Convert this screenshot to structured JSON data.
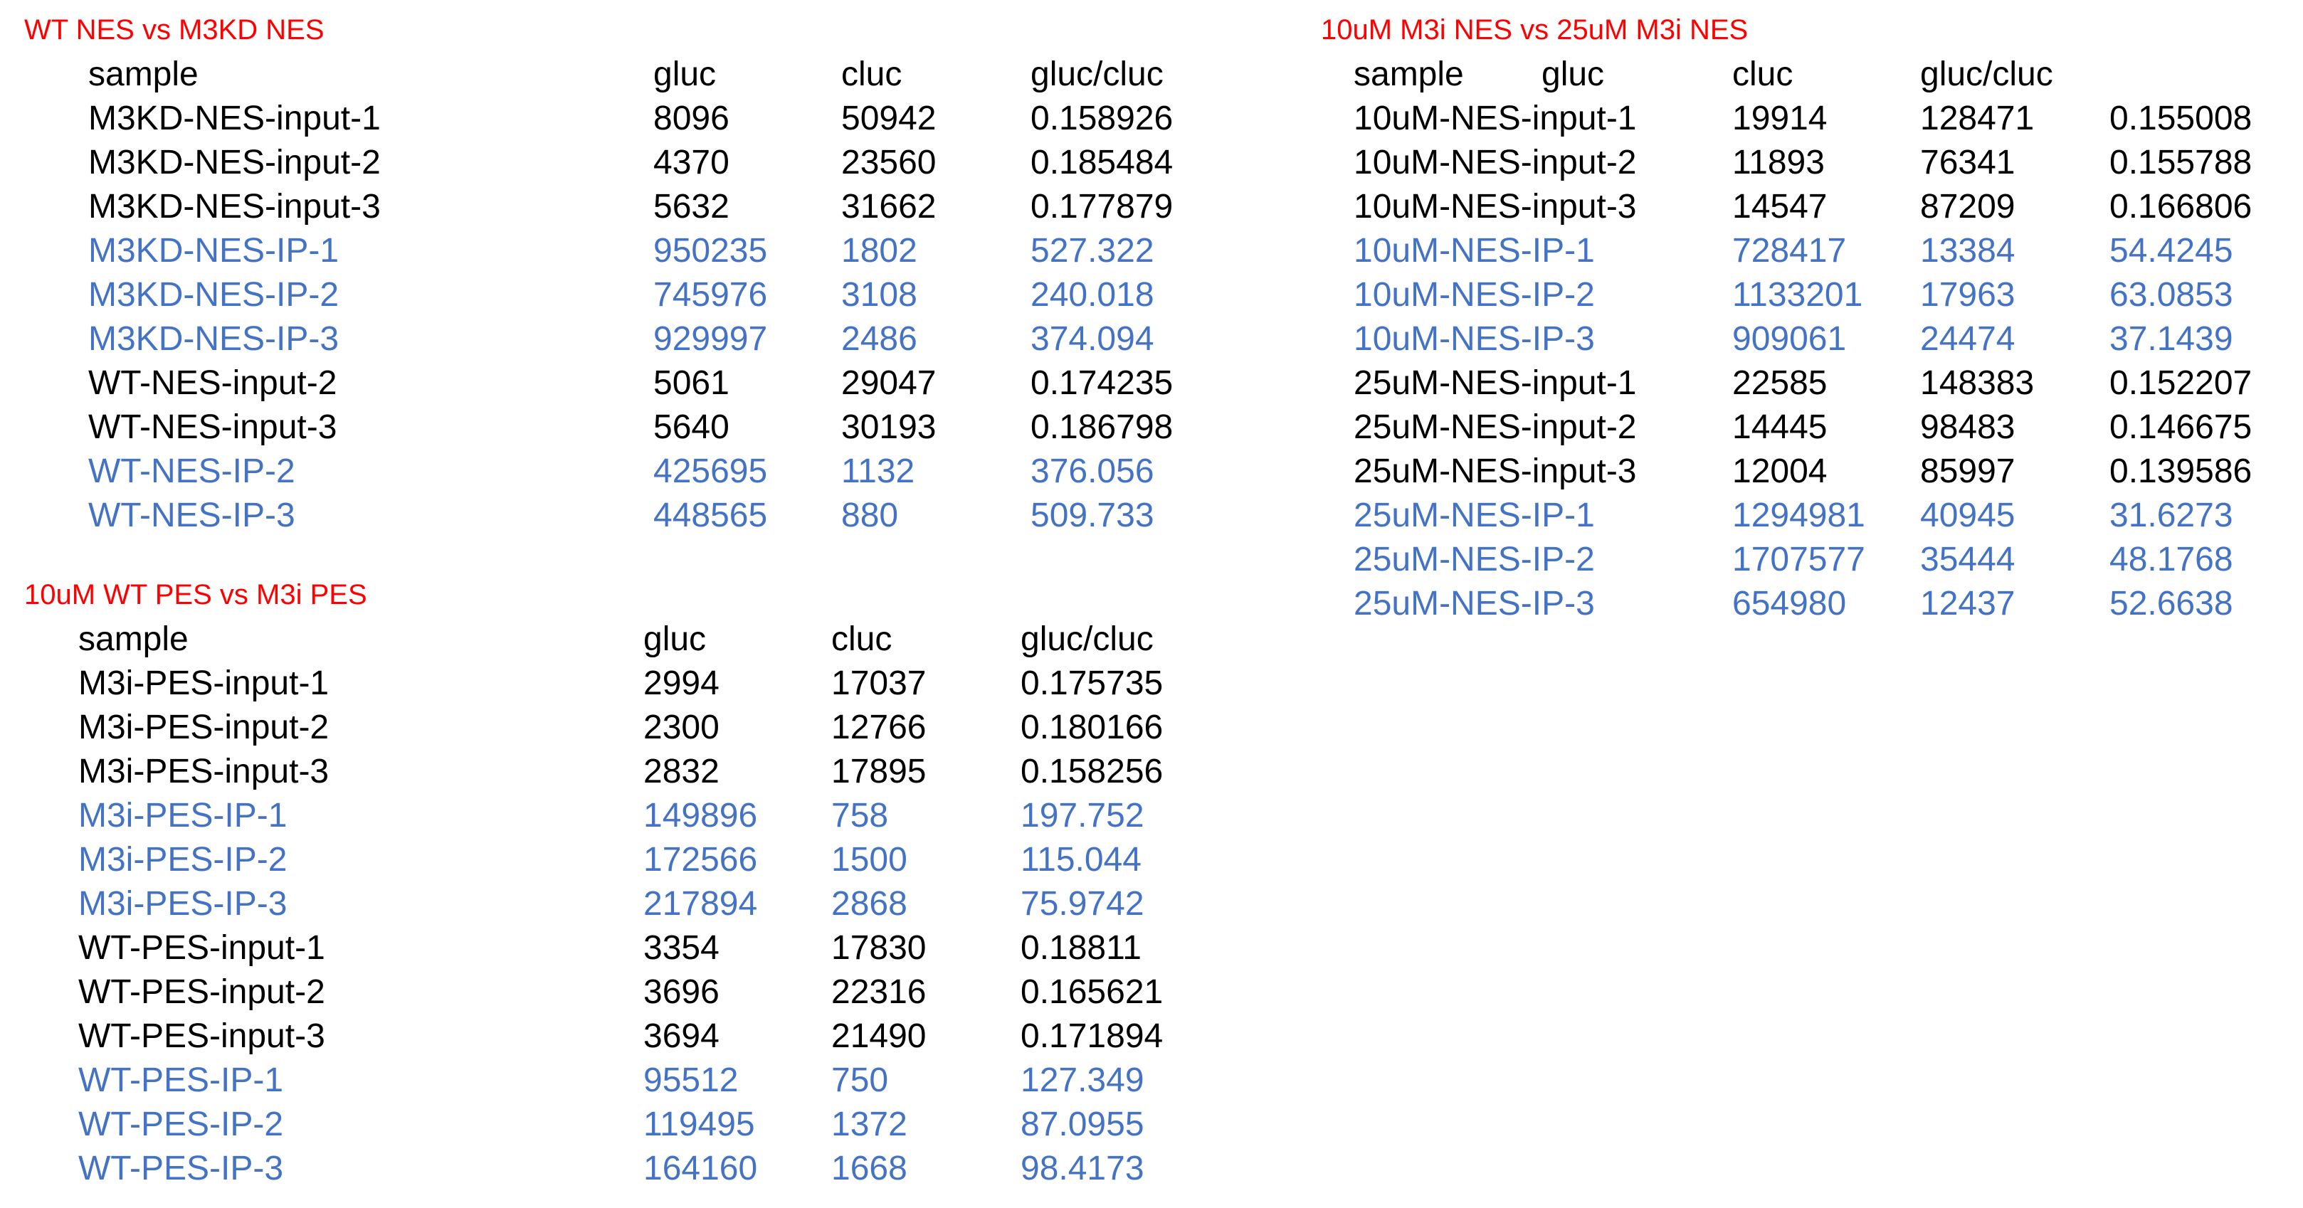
{
  "colors": {
    "title": "#ff0000",
    "input_row": "#000000",
    "ip_row": "#4472c4"
  },
  "tables": {
    "wt_vs_m3kd_nes": {
      "title": "WT NES vs M3KD NES",
      "header": [
        "sample",
        "gluc",
        "cluc",
        "gluc/cluc"
      ],
      "rows": [
        {
          "type": "input",
          "cells": [
            "M3KD-NES-input-1",
            "8096",
            "50942",
            "0.158926"
          ]
        },
        {
          "type": "input",
          "cells": [
            "M3KD-NES-input-2",
            "4370",
            "23560",
            "0.185484"
          ]
        },
        {
          "type": "input",
          "cells": [
            "M3KD-NES-input-3",
            "5632",
            "31662",
            "0.177879"
          ]
        },
        {
          "type": "ip",
          "cells": [
            "M3KD-NES-IP-1",
            "950235",
            "1802",
            "527.322"
          ]
        },
        {
          "type": "ip",
          "cells": [
            "M3KD-NES-IP-2",
            "745976",
            "3108",
            "240.018"
          ]
        },
        {
          "type": "ip",
          "cells": [
            "M3KD-NES-IP-3",
            "929997",
            "2486",
            "374.094"
          ]
        },
        {
          "type": "input",
          "cells": [
            "WT-NES-input-2",
            "5061",
            "29047",
            "0.174235"
          ]
        },
        {
          "type": "input",
          "cells": [
            "WT-NES-input-3",
            "5640",
            "30193",
            "0.186798"
          ]
        },
        {
          "type": "ip",
          "cells": [
            "WT-NES-IP-2",
            "425695",
            "1132",
            "376.056"
          ]
        },
        {
          "type": "ip",
          "cells": [
            "WT-NES-IP-3",
            "448565",
            "880",
            "509.733"
          ]
        }
      ]
    },
    "wt_pes_vs_m3i_pes": {
      "title": "10uM WT PES vs M3i PES",
      "header": [
        "sample",
        "gluc",
        "cluc",
        "gluc/cluc"
      ],
      "rows": [
        {
          "type": "input",
          "cells": [
            "M3i-PES-input-1",
            "2994",
            "17037",
            "0.175735"
          ]
        },
        {
          "type": "input",
          "cells": [
            "M3i-PES-input-2",
            "2300",
            "12766",
            "0.180166"
          ]
        },
        {
          "type": "input",
          "cells": [
            "M3i-PES-input-3",
            "2832",
            "17895",
            "0.158256"
          ]
        },
        {
          "type": "ip",
          "cells": [
            "M3i-PES-IP-1",
            "149896",
            "758",
            "197.752"
          ]
        },
        {
          "type": "ip",
          "cells": [
            "M3i-PES-IP-2",
            "172566",
            "1500",
            "115.044"
          ]
        },
        {
          "type": "ip",
          "cells": [
            "M3i-PES-IP-3",
            "217894",
            "2868",
            "75.9742"
          ]
        },
        {
          "type": "input",
          "cells": [
            "WT-PES-input-1",
            "3354",
            "17830",
            "0.18811"
          ]
        },
        {
          "type": "input",
          "cells": [
            "WT-PES-input-2",
            "3696",
            "22316",
            "0.165621"
          ]
        },
        {
          "type": "input",
          "cells": [
            "WT-PES-input-3",
            "3694",
            "21490",
            "0.171894"
          ]
        },
        {
          "type": "ip",
          "cells": [
            "WT-PES-IP-1",
            "95512",
            "750",
            "127.349"
          ]
        },
        {
          "type": "ip",
          "cells": [
            "WT-PES-IP-2",
            "119495",
            "1372",
            "87.0955"
          ]
        },
        {
          "type": "ip",
          "cells": [
            "WT-PES-IP-3",
            "164160",
            "1668",
            "98.4173"
          ]
        }
      ]
    },
    "m3i_10um_vs_25um_nes": {
      "title": "10uM M3i NES vs 25uM M3i NES",
      "header": [
        "sample",
        "gluc",
        "cluc",
        "gluc/cluc"
      ],
      "rows": [
        {
          "type": "input",
          "cells": [
            "10uM-NES-input-1",
            "19914",
            "128471",
            "0.155008"
          ]
        },
        {
          "type": "input",
          "cells": [
            "10uM-NES-input-2",
            "11893",
            "76341",
            "0.155788"
          ]
        },
        {
          "type": "input",
          "cells": [
            "10uM-NES-input-3",
            "14547",
            "87209",
            "0.166806"
          ]
        },
        {
          "type": "ip",
          "cells": [
            "10uM-NES-IP-1",
            "728417",
            "13384",
            "54.4245"
          ]
        },
        {
          "type": "ip",
          "cells": [
            "10uM-NES-IP-2",
            "1133201",
            "17963",
            "63.0853"
          ]
        },
        {
          "type": "ip",
          "cells": [
            "10uM-NES-IP-3",
            "909061",
            "24474",
            "37.1439"
          ]
        },
        {
          "type": "input",
          "cells": [
            "25uM-NES-input-1",
            "22585",
            "148383",
            "0.152207"
          ]
        },
        {
          "type": "input",
          "cells": [
            "25uM-NES-input-2",
            "14445",
            "98483",
            "0.146675"
          ]
        },
        {
          "type": "input",
          "cells": [
            "25uM-NES-input-3",
            "12004",
            "85997",
            "0.139586"
          ]
        },
        {
          "type": "ip",
          "cells": [
            "25uM-NES-IP-1",
            "1294981",
            "40945",
            "31.6273"
          ]
        },
        {
          "type": "ip",
          "cells": [
            "25uM-NES-IP-2",
            "1707577",
            "35444",
            "48.1768"
          ]
        },
        {
          "type": "ip",
          "cells": [
            "25uM-NES-IP-3",
            "654980",
            "12437",
            "52.6638"
          ]
        }
      ]
    }
  }
}
